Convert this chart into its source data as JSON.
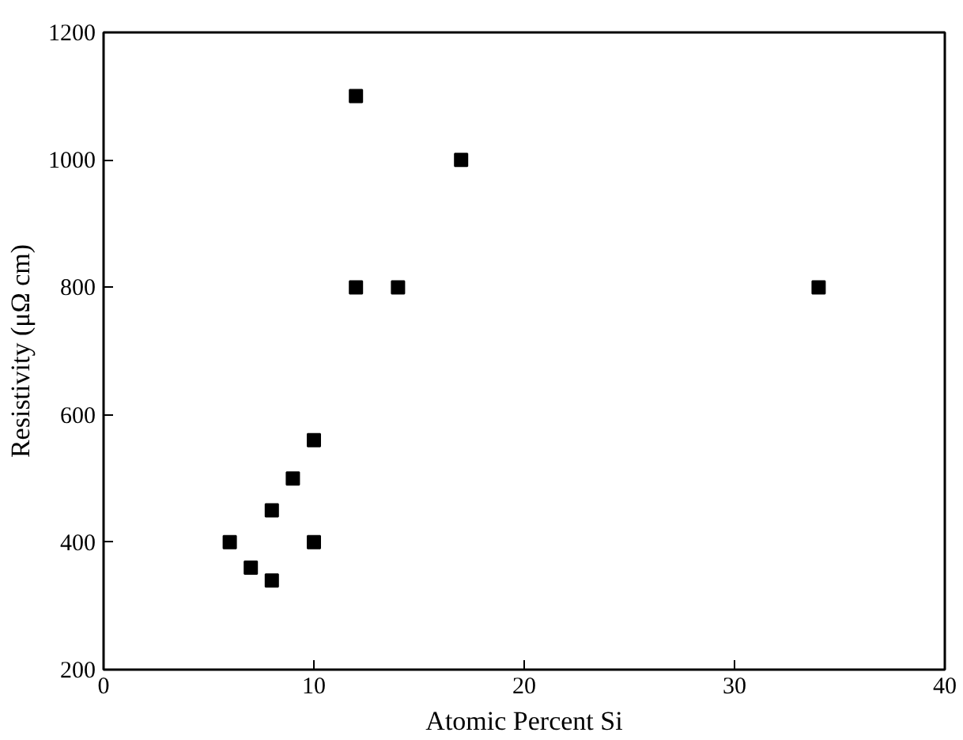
{
  "chart_data": {
    "type": "scatter",
    "xlabel": "Atomic Percent Si",
    "ylabel": "Resistivity (μΩ cm)",
    "x": [
      6,
      7,
      8,
      8,
      9,
      10,
      10,
      12,
      12,
      14,
      17,
      34
    ],
    "values": [
      400,
      360,
      340,
      450,
      500,
      560,
      400,
      1100,
      800,
      800,
      1000,
      800
    ],
    "color": "#000000",
    "marker": "square",
    "xlim": [
      0,
      40
    ],
    "xticks": [
      0,
      10,
      20,
      30,
      40
    ],
    "ylim": [
      200,
      1200
    ],
    "yticks": [
      200,
      400,
      600,
      800,
      1000,
      1200
    ],
    "grid": false
  }
}
